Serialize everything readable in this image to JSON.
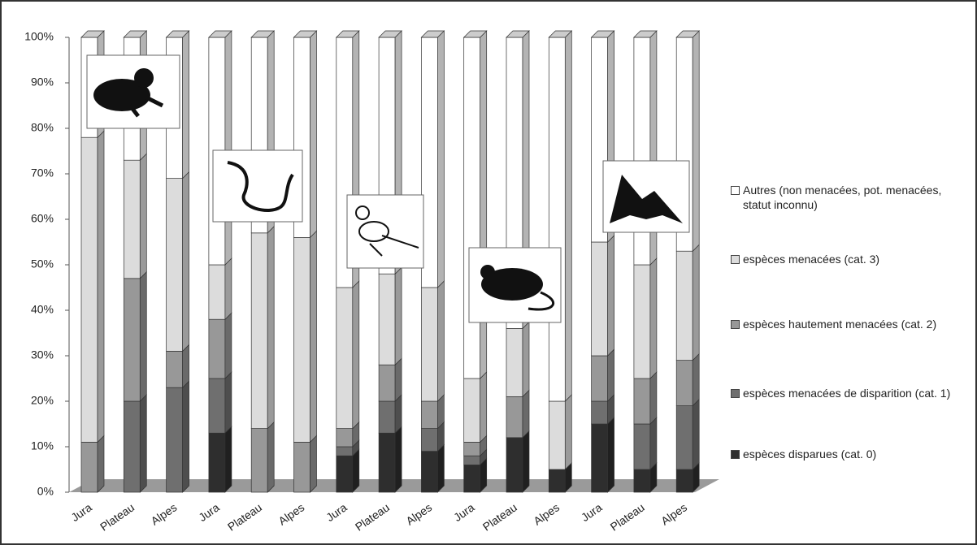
{
  "chart_data": {
    "type": "bar3d-stacked",
    "categories": [
      "Jura",
      "Plateau",
      "Alpes",
      "Jura",
      "Plateau",
      "Alpes",
      "Jura",
      "Plateau",
      "Alpes",
      "Jura",
      "Plateau",
      "Alpes",
      "Jura",
      "Plateau",
      "Alpes"
    ],
    "series": [
      {
        "name": "espèces disparues (cat. 0)",
        "color": "#2e2e2e",
        "values": [
          0,
          0,
          0,
          13,
          0,
          0,
          8,
          13,
          9,
          6,
          12,
          5,
          15,
          5,
          5
        ]
      },
      {
        "name": "espèces menacées de disparition (cat. 1)",
        "color": "#6f6f6f",
        "values": [
          0,
          20,
          23,
          12,
          0,
          0,
          2,
          7,
          5,
          2,
          0,
          0,
          5,
          10,
          14
        ]
      },
      {
        "name": "espèces hautement menacées (cat. 2)",
        "color": "#989898",
        "values": [
          11,
          27,
          8,
          13,
          14,
          11,
          4,
          8,
          6,
          3,
          9,
          0,
          10,
          10,
          10
        ]
      },
      {
        "name": "espèces menacées (cat. 3)",
        "color": "#dcdcdc",
        "values": [
          67,
          26,
          38,
          12,
          43,
          45,
          31,
          20,
          25,
          14,
          15,
          15,
          25,
          25,
          24
        ]
      },
      {
        "name": "Autres (non menacées, pot. menacées, statut inconnu)",
        "color": "#ffffff",
        "values": [
          22,
          27,
          31,
          50,
          43,
          44,
          55,
          52,
          55,
          75,
          64,
          80,
          45,
          50,
          47
        ]
      }
    ],
    "ylim": [
      0,
      100
    ],
    "yticks": [
      {
        "value": 0,
        "label": "0%"
      },
      {
        "value": 10,
        "label": "10%"
      },
      {
        "value": 20,
        "label": "20%"
      },
      {
        "value": 30,
        "label": "30%"
      },
      {
        "value": 40,
        "label": "40%"
      },
      {
        "value": 50,
        "label": "50%"
      },
      {
        "value": 60,
        "label": "60%"
      },
      {
        "value": 70,
        "label": "70%"
      },
      {
        "value": 80,
        "label": "80%"
      },
      {
        "value": 90,
        "label": "90%"
      },
      {
        "value": 100,
        "label": "100%"
      }
    ],
    "grid": false
  }
}
